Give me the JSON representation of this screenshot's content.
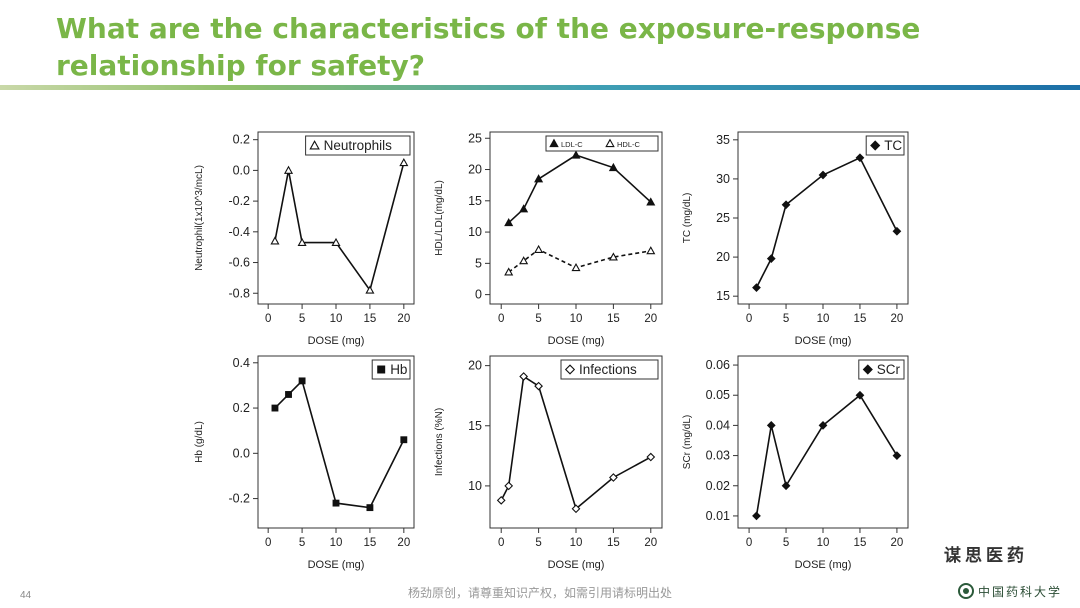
{
  "slide": {
    "title": "What are the characteristics of the exposure-response relationship for safety?",
    "page_number": "44",
    "footer_note": "杨劲原创，请尊重知识产权，如需引用请标明出处",
    "watermark": "谋思医药",
    "logo_text": "中国药科大学",
    "accent_color": "#7ab648"
  },
  "chart_data": [
    {
      "id": "neutrophils",
      "type": "line",
      "xlabel": "DOSE (mg)",
      "ylabel": "Neutrophil(1x10^3/mcL)",
      "xlim": [
        -1.5,
        21.5
      ],
      "ylim": [
        -0.87,
        0.25
      ],
      "xticks": [
        0,
        5,
        10,
        15,
        20
      ],
      "yticks": [
        0.2,
        0.0,
        -0.2,
        -0.4,
        -0.6,
        -0.8
      ],
      "ytick_labels": [
        "0.2",
        "0.0",
        "-0.2",
        "-0.4",
        "-0.6",
        "-0.8"
      ],
      "series": [
        {
          "name": "Neutrophils",
          "marker": "triangle-open",
          "dashed": false,
          "x": [
            1,
            3,
            5,
            10,
            15,
            20
          ],
          "y": [
            -0.46,
            0.0,
            -0.47,
            -0.47,
            -0.78,
            0.05
          ]
        }
      ],
      "legend": "top-right"
    },
    {
      "id": "ldl-hdl",
      "type": "line",
      "xlabel": "DOSE (mg)",
      "ylabel": "HDL/LDL(mg/dL)",
      "xlim": [
        -1.5,
        21.5
      ],
      "ylim": [
        -1.5,
        26
      ],
      "xticks": [
        0,
        5,
        10,
        15,
        20
      ],
      "yticks": [
        0,
        5,
        10,
        15,
        20,
        25
      ],
      "ytick_labels": [
        "0",
        "5",
        "10",
        "15",
        "20",
        "25"
      ],
      "series": [
        {
          "name": "LDL-C",
          "marker": "triangle-filled",
          "dashed": false,
          "x": [
            1,
            3,
            5,
            10,
            15,
            20
          ],
          "y": [
            11.5,
            13.7,
            18.5,
            22.3,
            20.3,
            14.8
          ]
        },
        {
          "name": "HDL-C",
          "marker": "triangle-open",
          "dashed": true,
          "x": [
            1,
            3,
            5,
            10,
            15,
            20
          ],
          "y": [
            3.6,
            5.4,
            7.2,
            4.3,
            6.0,
            7.0
          ]
        }
      ],
      "legend": "top-right"
    },
    {
      "id": "tc",
      "type": "line",
      "xlabel": "DOSE (mg)",
      "ylabel": "TC (mg/dL)",
      "xlim": [
        -1.5,
        21.5
      ],
      "ylim": [
        14,
        36
      ],
      "xticks": [
        0,
        5,
        10,
        15,
        20
      ],
      "yticks": [
        15,
        20,
        25,
        30,
        35
      ],
      "ytick_labels": [
        "15",
        "20",
        "25",
        "30",
        "35"
      ],
      "series": [
        {
          "name": "TC",
          "marker": "diamond-filled",
          "dashed": false,
          "x": [
            1,
            3,
            5,
            10,
            15,
            20
          ],
          "y": [
            16.1,
            19.8,
            26.7,
            30.5,
            32.7,
            23.3
          ]
        }
      ],
      "legend": "top-right"
    },
    {
      "id": "hb",
      "type": "line",
      "xlabel": "DOSE (mg)",
      "ylabel": "Hb (g/dL)",
      "xlim": [
        -1.5,
        21.5
      ],
      "ylim": [
        -0.33,
        0.43
      ],
      "xticks": [
        0,
        5,
        10,
        15,
        20
      ],
      "yticks": [
        0.4,
        0.2,
        0.0,
        -0.2
      ],
      "ytick_labels": [
        "0.4",
        "0.2",
        "0.0",
        "-0.2"
      ],
      "series": [
        {
          "name": "Hb",
          "marker": "square-filled",
          "dashed": false,
          "x": [
            1,
            3,
            5,
            10,
            15,
            20
          ],
          "y": [
            0.2,
            0.26,
            0.32,
            -0.22,
            -0.24,
            0.06
          ]
        }
      ],
      "legend": "top-right"
    },
    {
      "id": "infections",
      "type": "line",
      "xlabel": "DOSE (mg)",
      "ylabel": "Infections (%N)",
      "xlim": [
        -1.5,
        21.5
      ],
      "ylim": [
        6.5,
        20.8
      ],
      "xticks": [
        0,
        5,
        10,
        15,
        20
      ],
      "yticks": [
        10,
        15,
        20
      ],
      "ytick_labels": [
        "10",
        "15",
        "20"
      ],
      "series": [
        {
          "name": "Infections",
          "marker": "diamond-open",
          "dashed": false,
          "x": [
            0,
            1,
            3,
            5,
            10,
            15,
            20
          ],
          "y": [
            8.8,
            10.0,
            19.1,
            18.3,
            8.1,
            10.7,
            12.4
          ]
        }
      ],
      "legend": "top-right"
    },
    {
      "id": "scr",
      "type": "line",
      "xlabel": "DOSE (mg)",
      "ylabel": "SCr (mg/dL)",
      "xlim": [
        -1.5,
        21.5
      ],
      "ylim": [
        0.006,
        0.063
      ],
      "xticks": [
        0,
        5,
        10,
        15,
        20
      ],
      "yticks": [
        0.01,
        0.02,
        0.03,
        0.04,
        0.05,
        0.06
      ],
      "ytick_labels": [
        "0.01",
        "0.02",
        "0.03",
        "0.04",
        "0.05",
        "0.06"
      ],
      "series": [
        {
          "name": "SCr",
          "marker": "diamond-filled",
          "dashed": false,
          "x": [
            1,
            3,
            5,
            10,
            15,
            20
          ],
          "y": [
            0.01,
            0.04,
            0.02,
            0.04,
            0.05,
            0.03
          ]
        }
      ],
      "legend": "top-right"
    }
  ]
}
